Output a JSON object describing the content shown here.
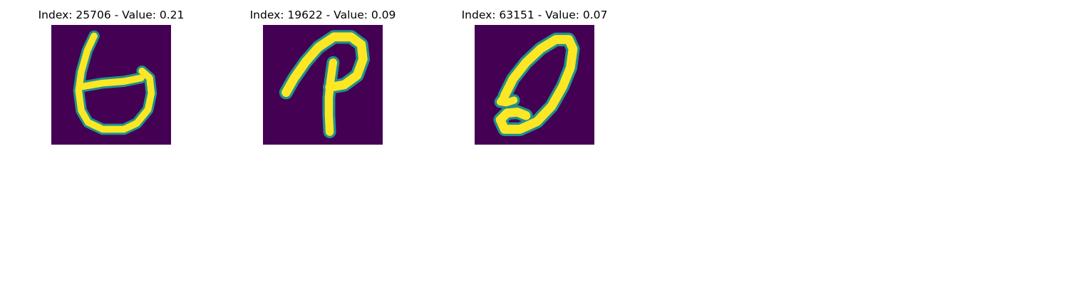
{
  "figure": {
    "colormap": {
      "background": "#440154",
      "mid": "#21918c",
      "high": "#fde725"
    },
    "panels": [
      {
        "title": "Index: 25706 - Value: 0.21"
      },
      {
        "title": "Index: 19622 - Value: 0.09"
      },
      {
        "title": "Index: 63151 - Value: 0.07"
      }
    ]
  }
}
